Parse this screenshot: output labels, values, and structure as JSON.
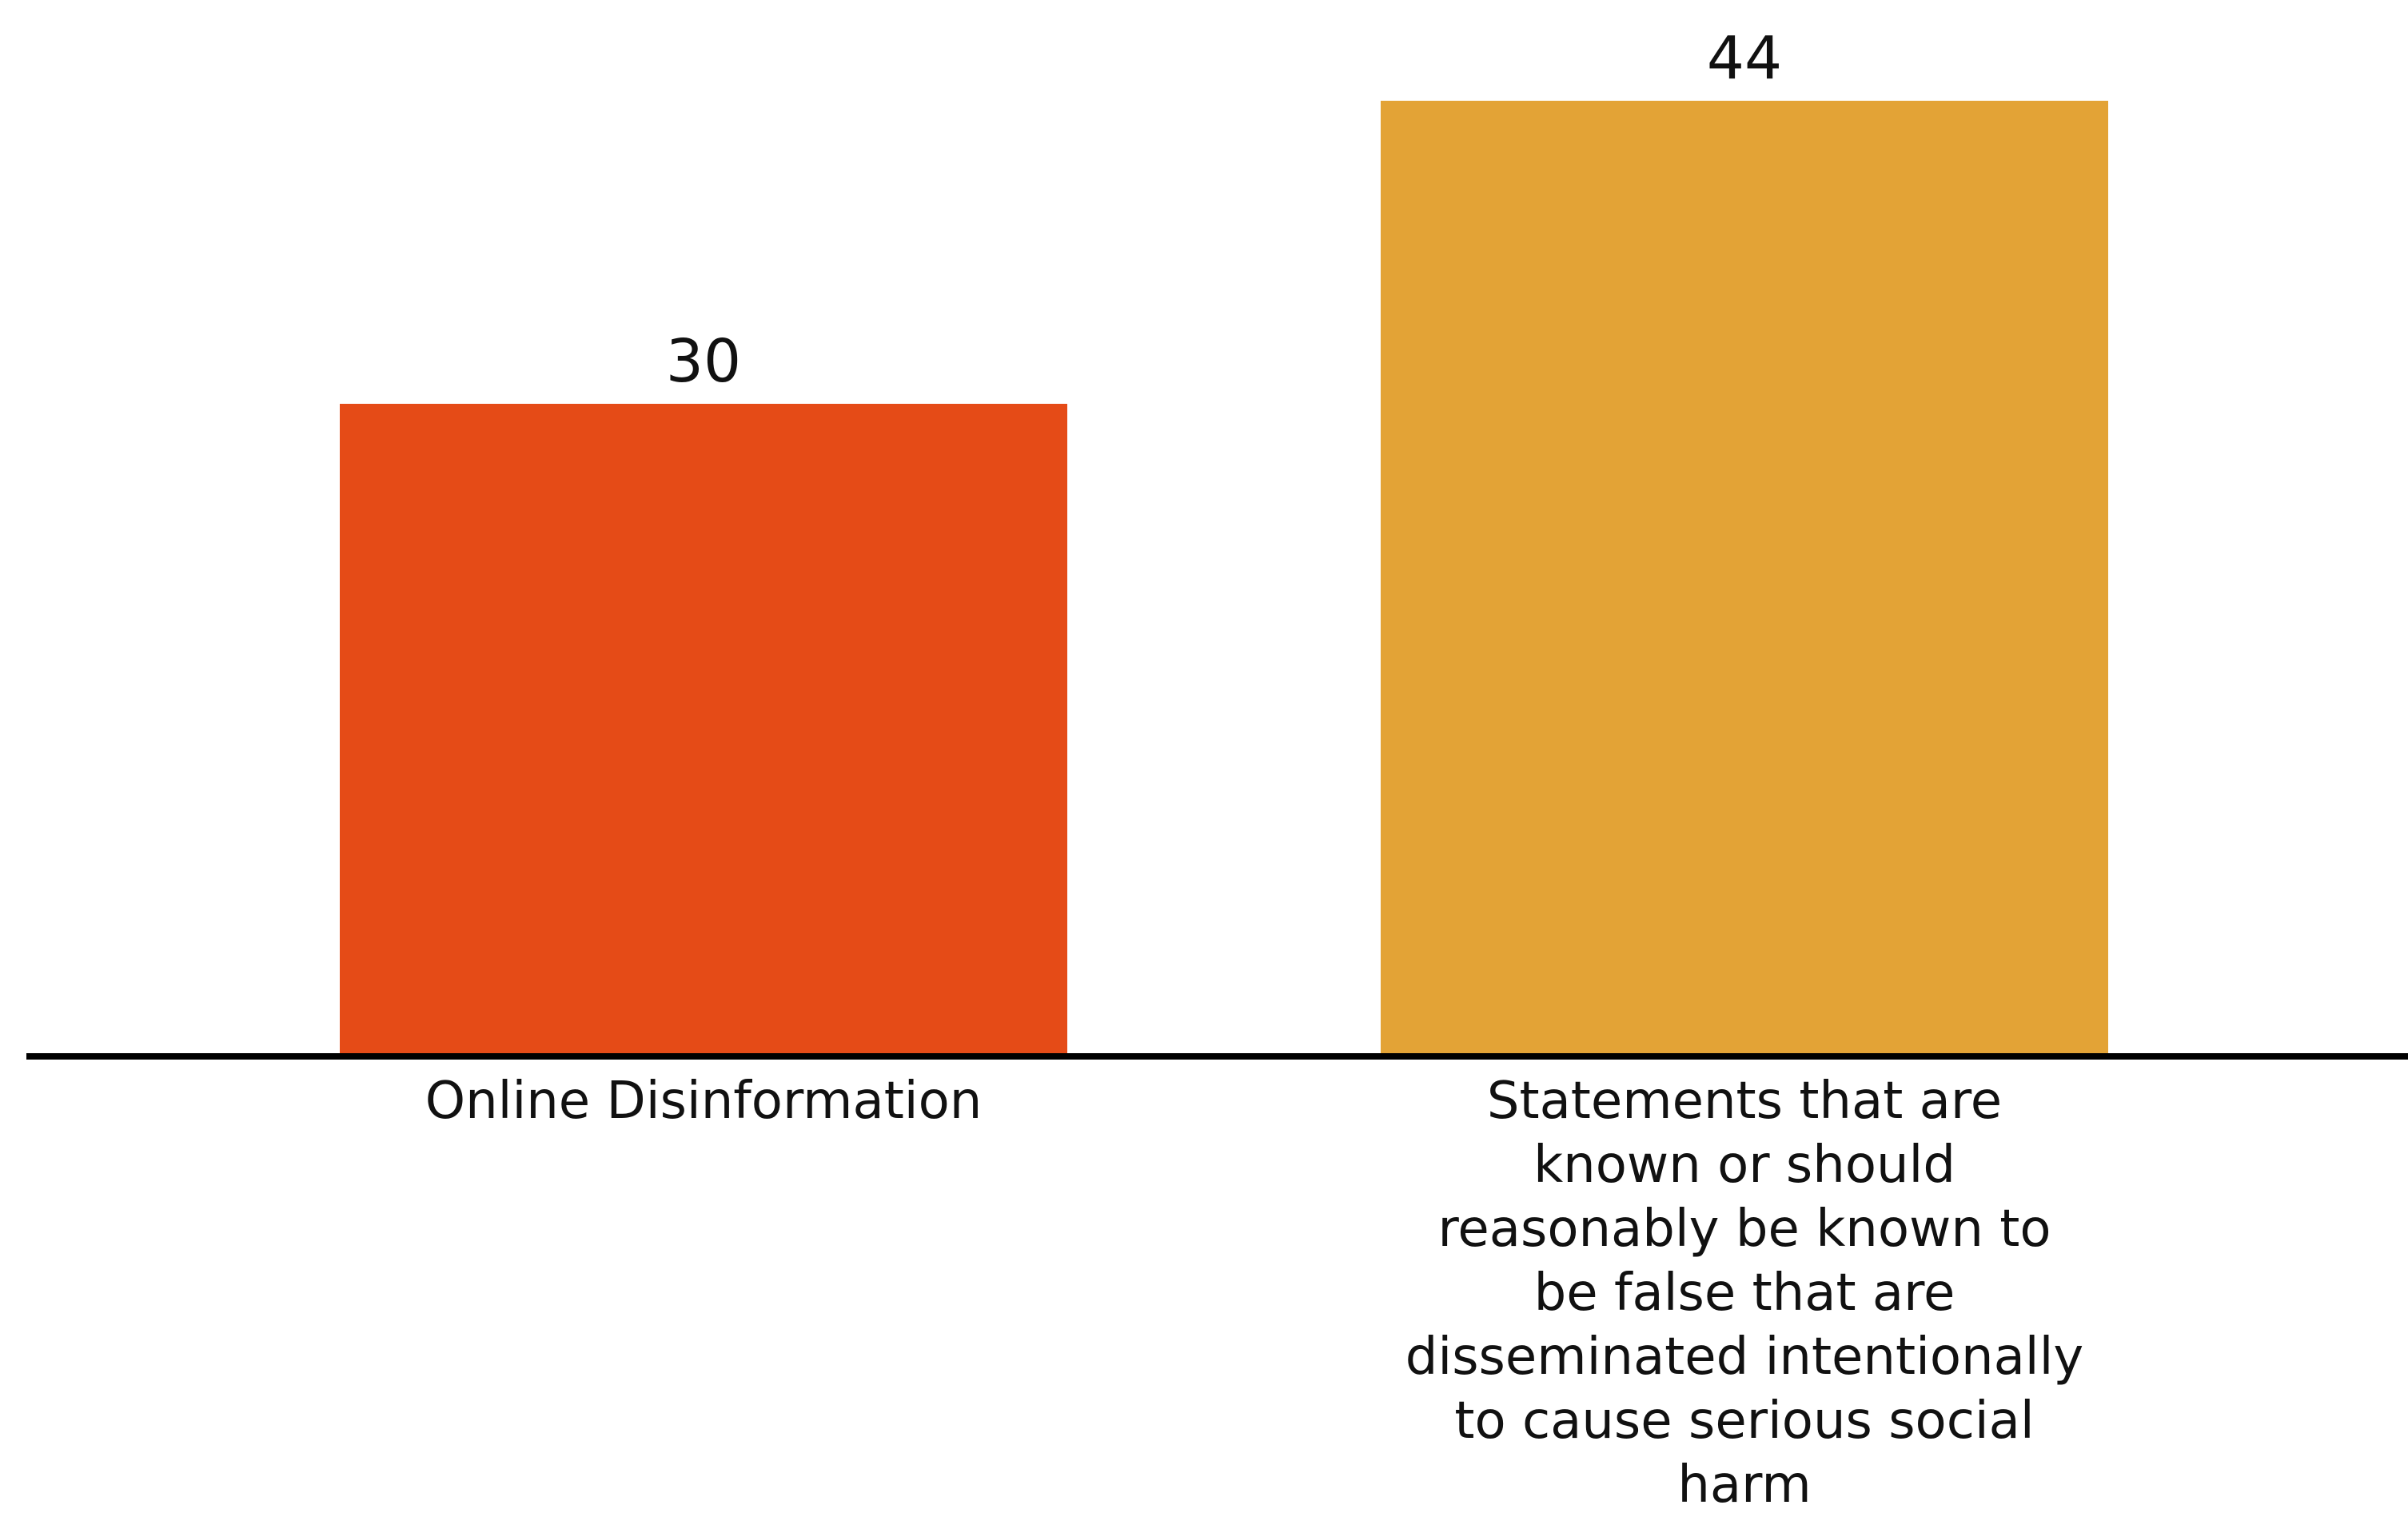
{
  "chart_data": {
    "type": "bar",
    "title": "",
    "xlabel": "",
    "ylabel": "",
    "ylim": [
      0,
      44
    ],
    "grid": false,
    "categories": [
      "Online Disinformation",
      "Statements that are known or should reasonably be known to be false that are disseminated intentionally to cause serious social harm"
    ],
    "values": [
      30,
      44
    ],
    "data_labels": [
      "30",
      "44"
    ],
    "colors": [
      "#E54B17",
      "#E3A336"
    ],
    "axis_color": "#000000"
  }
}
